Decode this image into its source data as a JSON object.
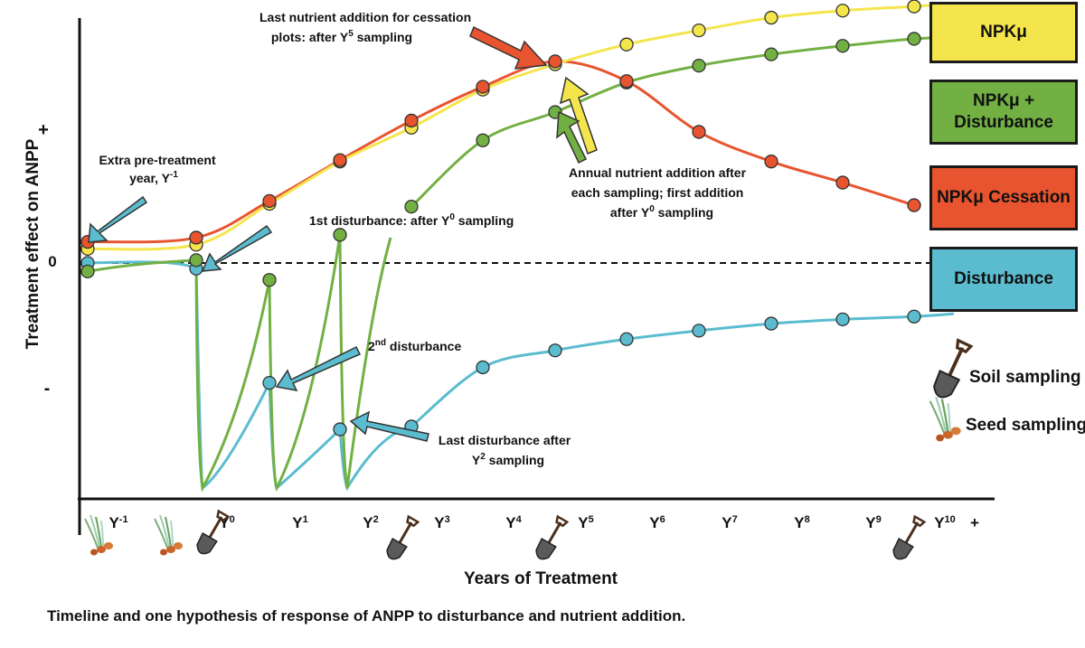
{
  "caption": "Timeline and one hypothesis of response of ANPP to disturbance and nutrient addition.",
  "axes": {
    "y_label": "Treatment effect on ANPP",
    "y_tick_plus": "+",
    "y_tick_zero": "0",
    "y_tick_minus": "-",
    "x_label": "Years of Treatment",
    "x_end": "+"
  },
  "years": [
    {
      "base": "Y",
      "sup": "-1"
    },
    {
      "base": "Y",
      "sup": "0"
    },
    {
      "base": "Y",
      "sup": "1"
    },
    {
      "base": "Y",
      "sup": "2"
    },
    {
      "base": "Y",
      "sup": "3"
    },
    {
      "base": "Y",
      "sup": "4"
    },
    {
      "base": "Y",
      "sup": "5"
    },
    {
      "base": "Y",
      "sup": "6"
    },
    {
      "base": "Y",
      "sup": "7"
    },
    {
      "base": "Y",
      "sup": "8"
    },
    {
      "base": "Y",
      "sup": "9"
    },
    {
      "base": "Y",
      "sup": "10"
    }
  ],
  "legend": [
    {
      "label": "NPKμ",
      "color": "#f5e54c"
    },
    {
      "label": "NPKμ +\nDisturbance",
      "color": "#72b043"
    },
    {
      "label": "NPKμ Cessation",
      "color": "#e8542f"
    },
    {
      "label": "Disturbance",
      "color": "#5bbccf"
    }
  ],
  "icons": {
    "soil_label": "Soil sampling",
    "seed_label": "Seed sampling",
    "soil_icon": "shovel-icon",
    "seed_icon": "seedling-icon"
  },
  "annotations": {
    "pre_year": [
      "Extra pre-treatment",
      "year, Y"
    ],
    "pre_year_sup": "-1",
    "last_nutrient": [
      "Last nutrient addition for cessation",
      "plots: after Y"
    ],
    "last_nutrient_sup": "5",
    "last_nutrient_tail": " sampling",
    "first_dist": "1st disturbance: after Y",
    "first_dist_sup": "0",
    "first_dist_tail": " sampling",
    "second_dist_pre": "2",
    "second_dist_sup": "nd",
    "second_dist_tail": " disturbance",
    "annual": [
      "Annual nutrient addition after",
      "each sampling; first addition",
      "after Y"
    ],
    "annual_sup": "0",
    "annual_tail": " sampling",
    "last_dist": [
      "Last disturbance after",
      "Y"
    ],
    "last_dist_sup": "2",
    "last_dist_tail": " sampling"
  },
  "colors": {
    "npk": "#f5e54c",
    "npk_dist": "#72b043",
    "cessation": "#e8542f",
    "disturbance": "#5bbccf",
    "arrow_blue": "#5bbccf",
    "arrow_red": "#e8542f",
    "arrow_yellow": "#f5e54c",
    "arrow_green": "#72b043"
  },
  "chart_data": {
    "type": "line",
    "categories": [
      "Y-1",
      "Y0",
      "Y1",
      "Y2",
      "Y3",
      "Y4",
      "Y5",
      "Y6",
      "Y7",
      "Y8",
      "Y9",
      "Y10"
    ],
    "series": [
      {
        "name": "NPKμ",
        "values": [
          0.1,
          0.13,
          0.42,
          0.72,
          0.96,
          1.23,
          1.41,
          1.55,
          1.65,
          1.74,
          1.79,
          1.82
        ]
      },
      {
        "name": "NPKμ + Disturbance",
        "values": [
          -0.06,
          0.02,
          -0.12,
          0.2,
          0.4,
          0.87,
          1.07,
          1.28,
          1.4,
          1.48,
          1.54,
          1.59
        ]
      },
      {
        "name": "NPKμ Cessation",
        "values": [
          0.15,
          0.18,
          0.44,
          0.73,
          1.01,
          1.25,
          1.43,
          1.29,
          0.93,
          0.72,
          0.57,
          0.41
        ]
      },
      {
        "name": "Disturbance",
        "values": [
          0.0,
          -0.04,
          -0.85,
          -1.18,
          -1.16,
          -0.74,
          -0.62,
          -0.54,
          -0.48,
          -0.43,
          -0.4,
          -0.38
        ]
      }
    ]
  }
}
